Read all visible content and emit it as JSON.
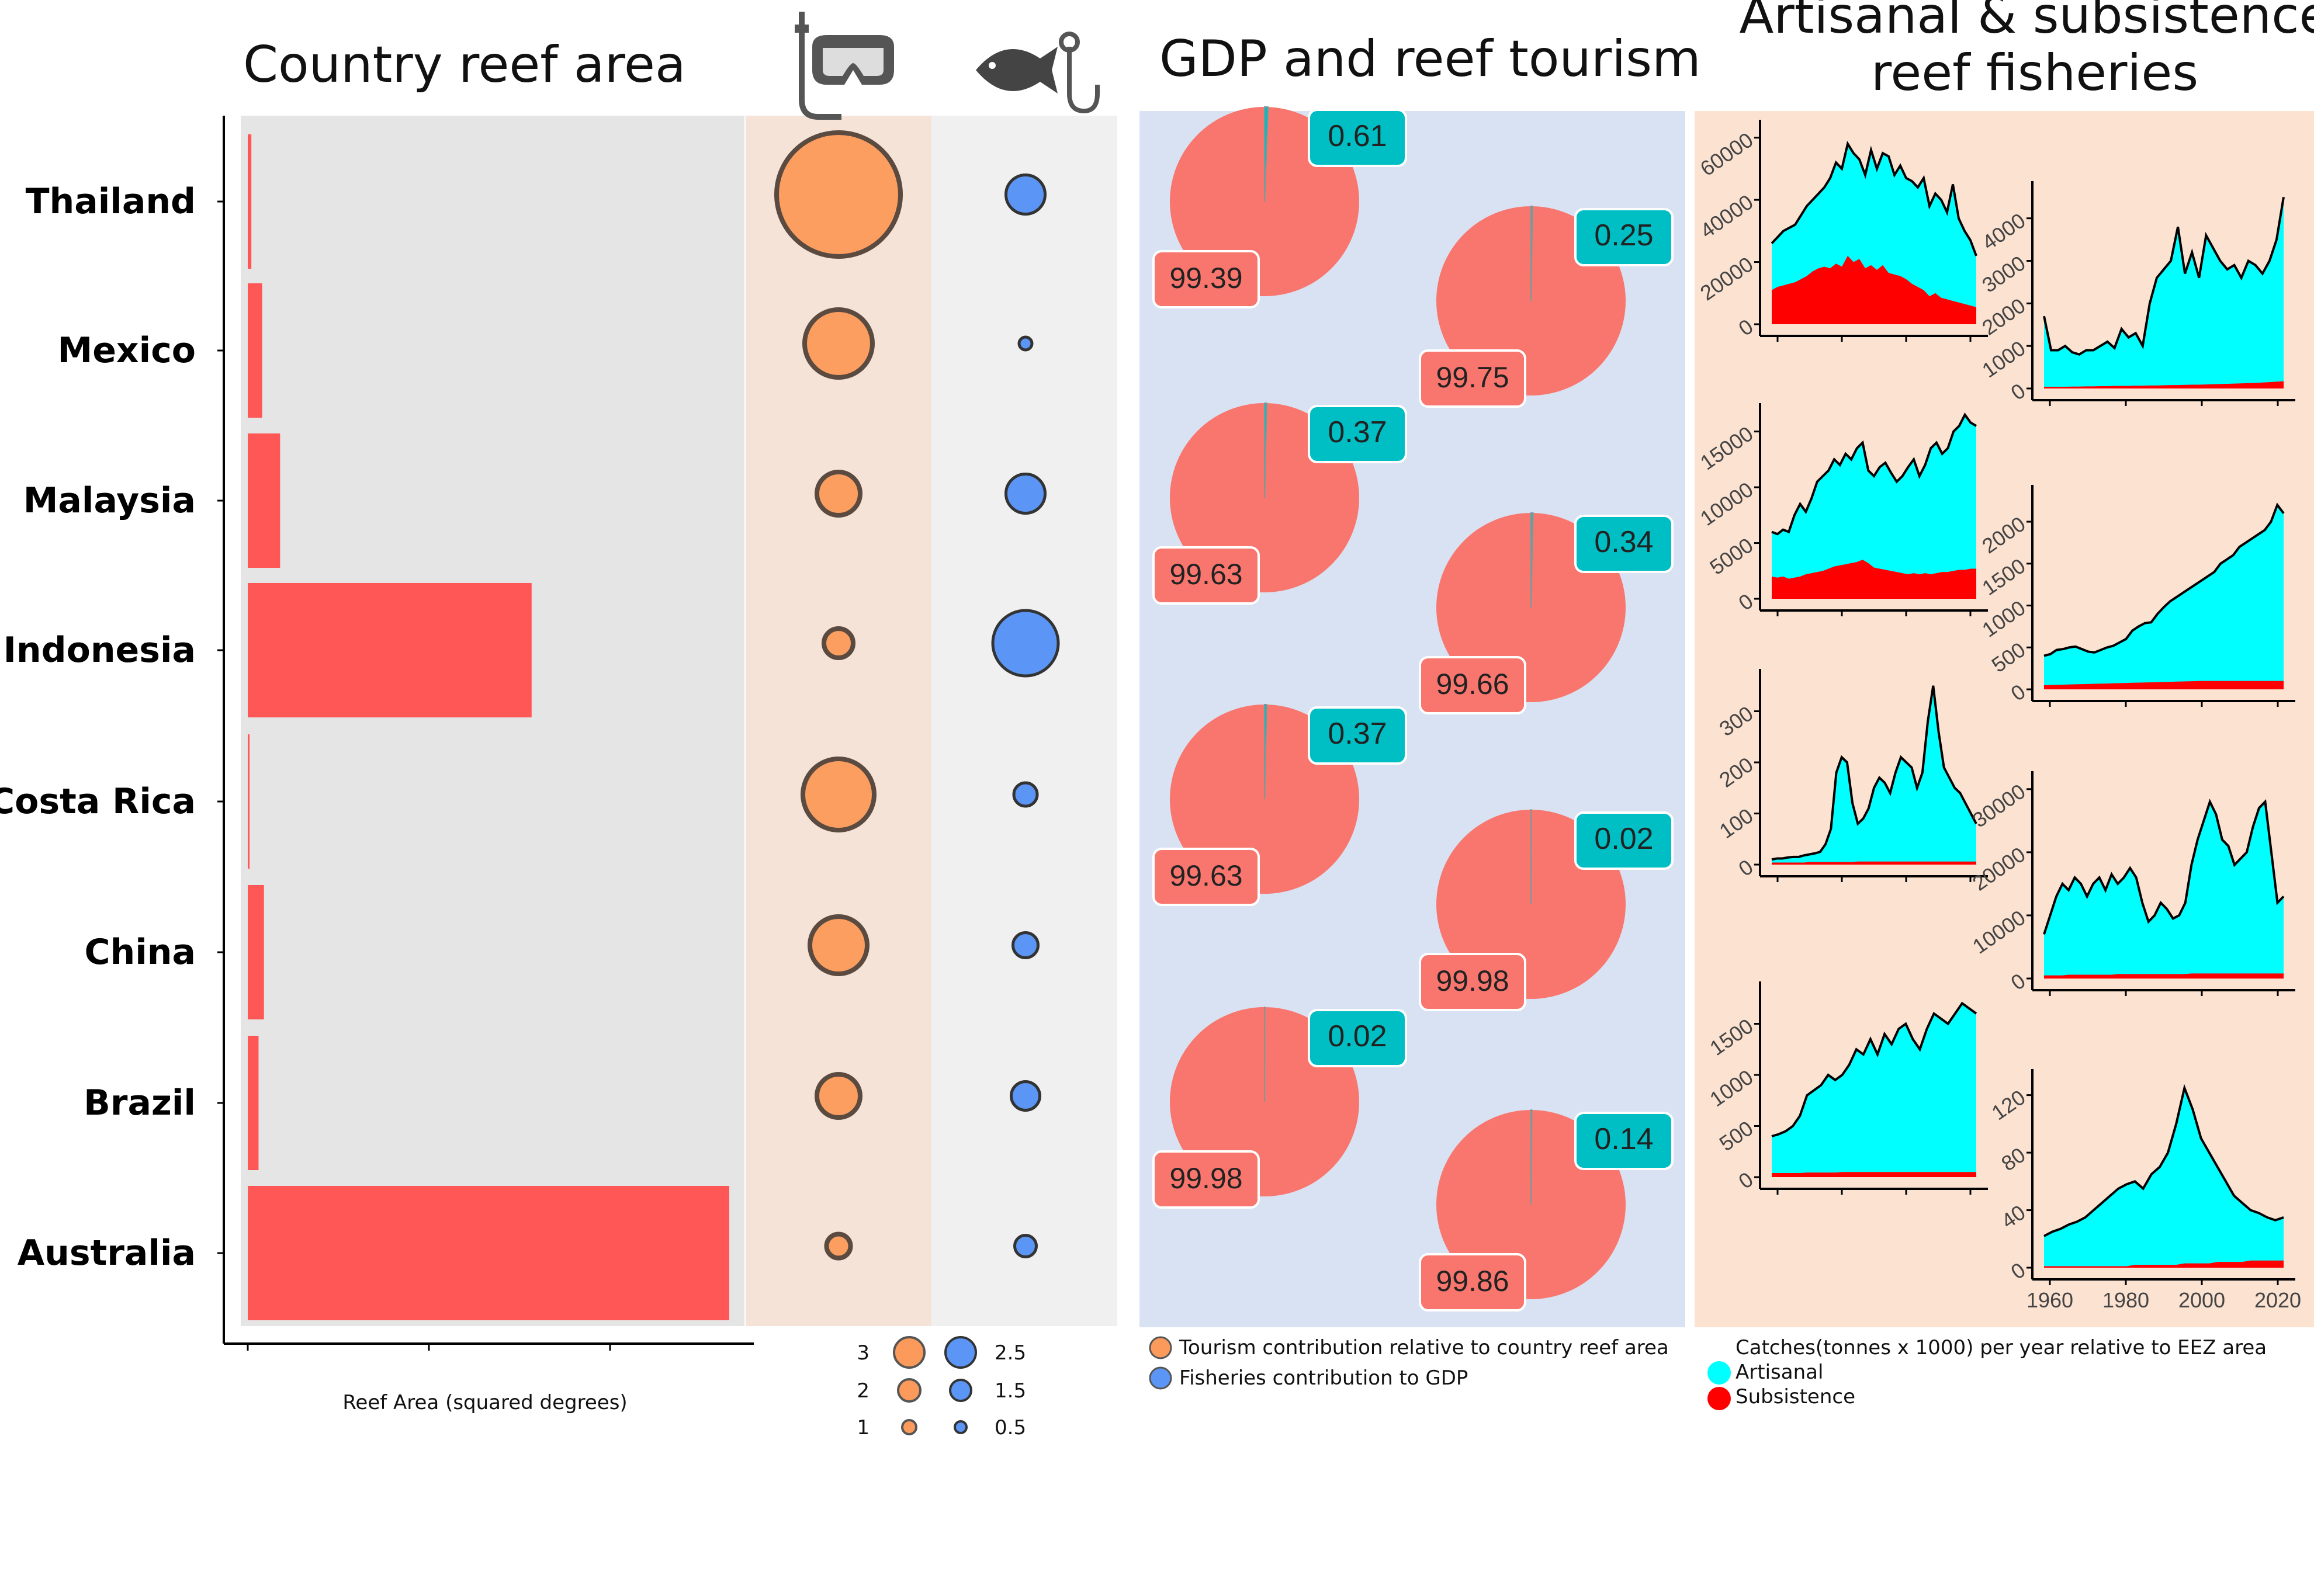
{
  "colors": {
    "bar": "#ff5656",
    "panel_grey": "#e5e5e5",
    "panel_peach": "#f5e3d8",
    "panel_light": "#f0f0f0",
    "panel_blue": "#d9e2f2",
    "panel_orange": "#fbe2d1",
    "tourism": "#fb9a5a",
    "fisheries": "#5b95f5",
    "pie_main": "#f8766d",
    "pie_small": "#00bfc4",
    "artisanal": "#00ffff",
    "subsistence": "#ff0000"
  },
  "icons": [
    "snorkel-mask-icon",
    "fish-on-hook-icon"
  ],
  "titles": {
    "reef_area": "Country reef area",
    "gdp": "GDP and reef tourism",
    "fisheries_line1": "Artisanal & subsistence",
    "fisheries_line2": "reef fisheries"
  },
  "chart_data": [
    {
      "type": "bar",
      "title": "Country reef area",
      "xlabel": "Reef Area (squared degrees)",
      "categories": [
        "Thailand",
        "Mexico",
        "Malaysia",
        "Indonesia",
        "Costa Rica",
        "China",
        "Brazil",
        "Australia"
      ],
      "values": [
        0.02,
        0.08,
        0.18,
        1.58,
        0.01,
        0.09,
        0.06,
        2.68
      ],
      "xlim": [
        0,
        2.8
      ]
    },
    {
      "type": "scatter",
      "categories": [
        "Thailand",
        "Mexico",
        "Malaysia",
        "Indonesia",
        "Costa Rica",
        "China",
        "Brazil",
        "Australia"
      ],
      "series": [
        {
          "name": "Tourism contribution relative to country reef area",
          "values": [
            3.2,
            1.6,
            0.9,
            0.5,
            1.7,
            1.3,
            0.9,
            0.35
          ]
        },
        {
          "name": "Fisheries contribution to GDP",
          "values": [
            1.7,
            0.2,
            1.7,
            3.2,
            0.8,
            0.9,
            1.1,
            0.7
          ]
        }
      ],
      "legend": {
        "tourism_labels": [
          "3",
          "2",
          "1"
        ],
        "fisheries_labels": [
          "2.5",
          "1.5",
          "0.5"
        ]
      }
    },
    {
      "type": "pie",
      "title": "GDP and reef tourism",
      "pies": [
        {
          "country": "Thailand",
          "big": 99.39,
          "small": 0.61
        },
        {
          "country": "Mexico",
          "big": 99.75,
          "small": 0.25
        },
        {
          "country": "Malaysia",
          "big": 99.63,
          "small": 0.37
        },
        {
          "country": "Indonesia",
          "big": 99.66,
          "small": 0.34
        },
        {
          "country": "Costa Rica",
          "big": 99.63,
          "small": 0.37
        },
        {
          "country": "China",
          "big": 99.98,
          "small": 0.02
        },
        {
          "country": "Brazil",
          "big": 99.98,
          "small": 0.02
        },
        {
          "country": "Australia",
          "big": 99.86,
          "small": 0.14
        }
      ],
      "legend": [
        "Tourism contribution relative to country reef area",
        "Fisheries contribution to GDP"
      ]
    },
    {
      "type": "area",
      "title": "Artisanal & subsistence reef fisheries",
      "legend_title": "Catches(tonnes x 1000) per year relative to EEZ area",
      "series_names": [
        "Artisanal",
        "Subsistence"
      ],
      "x_ticks": [
        "1960",
        "1980",
        "2000",
        "2020"
      ],
      "xlim": [
        1950,
        2020
      ],
      "panels": [
        {
          "country": "Thailand",
          "yticks": [
            "60000",
            "40000",
            "20000",
            "0"
          ],
          "ymax": 62000,
          "artisanal": [
            26000,
            28000,
            30000,
            31000,
            32000,
            35000,
            38000,
            40000,
            42000,
            44000,
            47000,
            52000,
            50000,
            58000,
            55000,
            53000,
            48000,
            56000,
            50000,
            55000,
            54000,
            48000,
            51000,
            47000,
            46000,
            44000,
            47000,
            38000,
            42000,
            40000,
            36000,
            45000,
            34000,
            30000,
            27000,
            22000
          ],
          "subsistence": [
            11000,
            12000,
            12500,
            13000,
            13500,
            14500,
            15500,
            17000,
            18000,
            18500,
            18000,
            19500,
            18500,
            22000,
            20000,
            21000,
            18000,
            19000,
            17500,
            19000,
            16500,
            16000,
            15500,
            14500,
            13000,
            12000,
            11000,
            9000,
            10000,
            8500,
            8000,
            7500,
            7000,
            6500,
            6000,
            5500
          ]
        },
        {
          "country": "Mexico",
          "yticks": [
            "4000",
            "3000",
            "2000",
            "1000",
            "0"
          ],
          "ymax": 4600,
          "artisanal": [
            1700,
            900,
            900,
            1000,
            850,
            800,
            900,
            900,
            1000,
            1100,
            950,
            1400,
            1200,
            1300,
            1000,
            2000,
            2600,
            2800,
            3000,
            3800,
            2700,
            3200,
            2600,
            3600,
            3300,
            3000,
            2800,
            2900,
            2600,
            3000,
            2900,
            2700,
            3000,
            3500,
            4500
          ],
          "subsistence": [
            40,
            40,
            40,
            40,
            45,
            45,
            50,
            50,
            55,
            55,
            60,
            60,
            60,
            65,
            65,
            70,
            70,
            75,
            80,
            80,
            85,
            90,
            90,
            95,
            100,
            105,
            110,
            115,
            120,
            125,
            130,
            140,
            150,
            160,
            170
          ]
        },
        {
          "country": "Malaysia",
          "yticks": [
            "15000",
            "10000",
            "5000",
            "0"
          ],
          "ymax": 16500,
          "artisanal": [
            6000,
            5800,
            6200,
            6000,
            7500,
            8500,
            7800,
            9000,
            10500,
            11000,
            11500,
            12500,
            12000,
            13000,
            12500,
            13500,
            14000,
            11500,
            11000,
            11800,
            12200,
            11300,
            10500,
            11000,
            11800,
            12500,
            11000,
            12000,
            13500,
            14000,
            13000,
            13500,
            15000,
            15500,
            16500,
            15800,
            15500
          ],
          "subsistence": [
            2000,
            1900,
            2000,
            1800,
            1900,
            2000,
            2200,
            2300,
            2400,
            2500,
            2700,
            2900,
            3000,
            3100,
            3200,
            3300,
            3500,
            3200,
            2800,
            2700,
            2600,
            2500,
            2400,
            2300,
            2200,
            2300,
            2200,
            2300,
            2200,
            2300,
            2400,
            2400,
            2500,
            2600,
            2600,
            2700,
            2700
          ]
        },
        {
          "country": "Indonesia",
          "yticks": [
            "2000",
            "1500",
            "1000",
            "500",
            "0"
          ],
          "ymax": 2300,
          "artisanal": [
            400,
            420,
            470,
            480,
            500,
            510,
            480,
            450,
            440,
            470,
            500,
            520,
            560,
            600,
            700,
            750,
            790,
            800,
            900,
            980,
            1050,
            1100,
            1150,
            1200,
            1250,
            1300,
            1350,
            1400,
            1500,
            1550,
            1600,
            1700,
            1750,
            1800,
            1850,
            1900,
            2000,
            2200,
            2100
          ],
          "subsistence": [
            50,
            52,
            54,
            56,
            58,
            60,
            62,
            64,
            66,
            68,
            70,
            72,
            74,
            76,
            78,
            80,
            82,
            84,
            86,
            88,
            90,
            92,
            94,
            96,
            98,
            100,
            100,
            100,
            100,
            100,
            100,
            100,
            100,
            100,
            100,
            100,
            100,
            100,
            100
          ]
        },
        {
          "country": "Costa Rica",
          "yticks": [
            "300",
            "200",
            "100",
            "0"
          ],
          "ymax": 360,
          "artisanal": [
            10,
            12,
            12,
            14,
            15,
            15,
            18,
            20,
            22,
            25,
            40,
            70,
            180,
            210,
            200,
            120,
            80,
            90,
            110,
            150,
            170,
            160,
            140,
            180,
            210,
            200,
            190,
            150,
            180,
            280,
            350,
            260,
            190,
            170,
            150,
            140,
            120,
            100,
            80
          ],
          "subsistence": [
            4,
            4,
            4,
            4,
            4,
            4,
            4,
            5,
            5,
            5,
            5,
            5,
            5,
            5,
            5,
            5,
            6,
            6,
            6,
            6,
            6,
            6,
            6,
            6,
            6,
            6,
            6,
            6,
            6,
            6,
            6,
            6,
            6,
            6,
            6,
            6,
            6,
            6,
            6
          ]
        },
        {
          "country": "China",
          "yticks": [
            "30000",
            "20000",
            "10000",
            "0"
          ],
          "ymax": 31000,
          "artisanal": [
            7000,
            10000,
            13000,
            15000,
            14000,
            16000,
            15000,
            13000,
            15000,
            16000,
            14000,
            16500,
            15000,
            16000,
            17500,
            16000,
            12000,
            9000,
            10000,
            12000,
            11000,
            9500,
            10000,
            12000,
            18000,
            22000,
            25000,
            28000,
            26000,
            22000,
            21000,
            18000,
            19000,
            20000,
            24000,
            27000,
            28000,
            20000,
            12000,
            13000
          ],
          "subsistence": [
            500,
            500,
            500,
            500,
            600,
            600,
            600,
            600,
            600,
            600,
            600,
            600,
            700,
            700,
            700,
            700,
            700,
            700,
            700,
            700,
            700,
            700,
            700,
            700,
            800,
            800,
            800,
            800,
            800,
            800,
            800,
            800,
            800,
            800,
            800,
            800,
            800,
            800,
            800,
            800
          ]
        },
        {
          "country": "Brazil",
          "yticks": [
            "1500",
            "1000",
            "500",
            "0"
          ],
          "ymax": 1800,
          "artisanal": [
            400,
            420,
            450,
            500,
            600,
            800,
            850,
            900,
            1000,
            950,
            1000,
            1100,
            1250,
            1200,
            1350,
            1200,
            1400,
            1300,
            1450,
            1500,
            1350,
            1250,
            1450,
            1600,
            1550,
            1500,
            1600,
            1700,
            1650,
            1600
          ],
          "subsistence": [
            40,
            40,
            40,
            40,
            40,
            45,
            45,
            45,
            45,
            45,
            50,
            50,
            50,
            50,
            50,
            50,
            50,
            50,
            50,
            50,
            50,
            50,
            50,
            50,
            50,
            50,
            50,
            50,
            50,
            50
          ]
        },
        {
          "country": "Australia",
          "yticks": [
            "120",
            "80",
            "40",
            "0"
          ],
          "ymax": 130,
          "artisanal": [
            22,
            25,
            27,
            30,
            32,
            35,
            40,
            45,
            50,
            55,
            58,
            60,
            55,
            65,
            70,
            80,
            100,
            125,
            110,
            90,
            80,
            70,
            60,
            50,
            45,
            40,
            38,
            35,
            33,
            35
          ],
          "subsistence": [
            1,
            1,
            1,
            1,
            1,
            1,
            1,
            1,
            1,
            1,
            1,
            2,
            2,
            2,
            2,
            2,
            2,
            3,
            3,
            3,
            3,
            4,
            4,
            4,
            4,
            5,
            5,
            5,
            5,
            5
          ]
        }
      ]
    }
  ]
}
